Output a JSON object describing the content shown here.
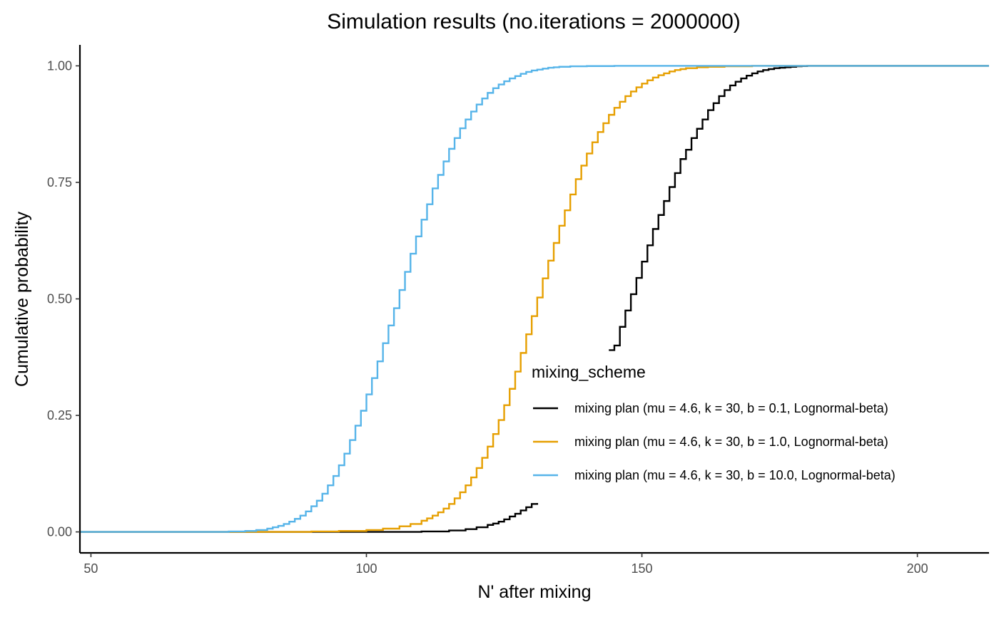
{
  "chart_data": {
    "type": "line",
    "subtype": "step-ecdf",
    "title": "Simulation results (no.iterations = 2000000)",
    "xlabel": "N' after mixing",
    "ylabel": "Cumulative probability",
    "xlim": [
      48,
      213
    ],
    "ylim": [
      -0.045,
      1.045
    ],
    "x_ticks": [
      50,
      100,
      150,
      200
    ],
    "x_tick_labels": [
      "50",
      "100",
      "150",
      "200"
    ],
    "y_ticks": [
      0,
      0.25,
      0.5,
      0.75,
      1
    ],
    "y_tick_labels": [
      "0.00",
      "0.25",
      "0.50",
      "0.75",
      "1.00"
    ],
    "grid": false,
    "legend": {
      "title": "mixing_scheme",
      "position": "right-inside"
    },
    "series": [
      {
        "name": "mixing plan (mu = 4.6, k = 30, b = 0.1, Lognormal-beta)",
        "color": "#000000",
        "segments": [
          {
            "x": [
              48,
              100,
              110,
              115,
              118,
              120,
              122,
              123,
              124,
              125,
              126,
              127,
              128,
              129,
              130,
              131
            ],
            "y": [
              0,
              0.0,
              0.001,
              0.003,
              0.006,
              0.01,
              0.015,
              0.018,
              0.022,
              0.027,
              0.033,
              0.039,
              0.046,
              0.053,
              0.06,
              0.062
            ]
          },
          {
            "x": [
              144,
              145,
              146,
              147,
              148,
              149,
              150,
              151,
              152,
              153,
              154,
              155,
              156,
              157,
              158,
              159,
              160,
              161,
              162,
              163,
              164,
              165,
              166,
              167,
              168,
              169,
              170,
              171,
              172,
              173,
              174,
              175,
              176,
              177,
              178,
              179,
              180,
              182,
              185,
              190,
              213
            ],
            "y": [
              0.39,
              0.4,
              0.44,
              0.475,
              0.51,
              0.545,
              0.58,
              0.615,
              0.65,
              0.68,
              0.71,
              0.74,
              0.77,
              0.8,
              0.82,
              0.845,
              0.865,
              0.885,
              0.905,
              0.92,
              0.935,
              0.948,
              0.958,
              0.966,
              0.973,
              0.979,
              0.984,
              0.988,
              0.991,
              0.993,
              0.995,
              0.996,
              0.997,
              0.998,
              0.999,
              0.9995,
              1.0,
              1.0,
              1.0,
              1.0,
              1.0
            ]
          }
        ]
      },
      {
        "name": "mixing plan (mu = 4.6, k = 30, b = 1.0, Lognormal-beta)",
        "color": "#E69F00",
        "segments": [
          {
            "x": [
              48,
              80,
              90,
              95,
              100,
              103,
              106,
              108,
              110,
              111,
              112,
              113,
              114,
              115,
              116,
              117,
              118,
              119,
              120,
              121,
              122,
              123,
              124,
              125,
              126,
              127,
              128,
              129,
              130,
              131,
              132,
              133,
              134,
              135,
              136,
              137,
              138,
              139,
              140,
              141,
              142,
              143,
              144,
              145,
              146,
              147,
              148,
              149,
              150,
              151,
              152,
              153,
              154,
              155,
              156,
              157,
              158,
              160,
              162,
              165,
              170,
              213
            ],
            "y": [
              0,
              0.0,
              0.001,
              0.002,
              0.004,
              0.007,
              0.012,
              0.017,
              0.024,
              0.029,
              0.035,
              0.042,
              0.05,
              0.06,
              0.072,
              0.085,
              0.1,
              0.117,
              0.137,
              0.159,
              0.183,
              0.21,
              0.24,
              0.272,
              0.307,
              0.344,
              0.384,
              0.424,
              0.463,
              0.503,
              0.544,
              0.582,
              0.62,
              0.657,
              0.69,
              0.724,
              0.757,
              0.786,
              0.812,
              0.836,
              0.858,
              0.877,
              0.895,
              0.91,
              0.923,
              0.935,
              0.945,
              0.954,
              0.962,
              0.969,
              0.975,
              0.98,
              0.984,
              0.988,
              0.991,
              0.993,
              0.995,
              0.997,
              0.998,
              0.999,
              1.0,
              1.0
            ]
          }
        ]
      },
      {
        "name": "mixing plan (mu = 4.6, k = 30, b = 10.0, Lognormal-beta)",
        "color": "#56B4E9",
        "segments": [
          {
            "x": [
              48,
              70,
              75,
              78,
              80,
              82,
              83,
              84,
              85,
              86,
              87,
              88,
              89,
              90,
              91,
              92,
              93,
              94,
              95,
              96,
              97,
              98,
              99,
              100,
              101,
              102,
              103,
              104,
              105,
              106,
              107,
              108,
              109,
              110,
              111,
              112,
              113,
              114,
              115,
              116,
              117,
              118,
              119,
              120,
              121,
              122,
              123,
              124,
              125,
              126,
              127,
              128,
              129,
              130,
              131,
              132,
              133,
              134,
              135,
              137,
              140,
              145,
              150,
              213
            ],
            "y": [
              0,
              0.0,
              0.001,
              0.002,
              0.004,
              0.007,
              0.01,
              0.013,
              0.017,
              0.022,
              0.028,
              0.035,
              0.044,
              0.055,
              0.067,
              0.082,
              0.1,
              0.12,
              0.143,
              0.168,
              0.197,
              0.228,
              0.26,
              0.295,
              0.33,
              0.366,
              0.405,
              0.443,
              0.48,
              0.519,
              0.558,
              0.597,
              0.634,
              0.67,
              0.703,
              0.737,
              0.766,
              0.795,
              0.822,
              0.845,
              0.866,
              0.885,
              0.902,
              0.917,
              0.93,
              0.942,
              0.952,
              0.96,
              0.967,
              0.973,
              0.978,
              0.983,
              0.987,
              0.99,
              0.992,
              0.994,
              0.996,
              0.997,
              0.998,
              0.999,
              0.9995,
              1.0,
              1.0,
              1.0
            ]
          }
        ]
      }
    ]
  }
}
